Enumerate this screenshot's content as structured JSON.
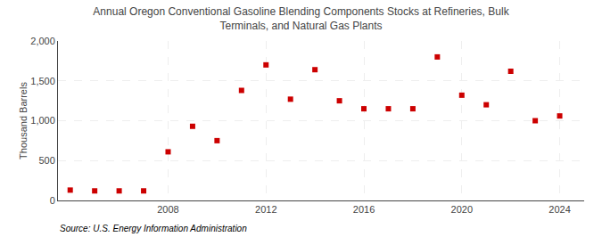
{
  "chart_data": {
    "type": "scatter",
    "title": "Annual Oregon Conventional Gasoline Blending Components Stocks at Refineries, Bulk\nTerminals, and Natural Gas Plants",
    "ylabel": "Thousand Barrels",
    "annotations": [
      "Source: U.S. Energy Information Administration"
    ],
    "x": [
      2004,
      2005,
      2006,
      2007,
      2008,
      2009,
      2010,
      2011,
      2012,
      2013,
      2014,
      2015,
      2016,
      2017,
      2018,
      2019,
      2020,
      2021,
      2022,
      2023,
      2024
    ],
    "values": [
      130,
      120,
      120,
      120,
      610,
      930,
      750,
      1380,
      1700,
      1270,
      1640,
      1250,
      1150,
      1150,
      1150,
      1800,
      1320,
      1200,
      1620,
      1000,
      1060
    ],
    "color": "#cc0000",
    "marker": "square",
    "xlim": [
      2003.5,
      2025.0
    ],
    "xticks": [
      2008,
      2012,
      2016,
      2020,
      2024
    ],
    "ylim": [
      0,
      2000
    ],
    "yticks": [
      0,
      500,
      {
        "value": 1000,
        "label": "1,000"
      },
      {
        "value": 1500,
        "label": "1,500"
      },
      {
        "value": 2000,
        "label": "2,000"
      }
    ],
    "grid": true
  }
}
